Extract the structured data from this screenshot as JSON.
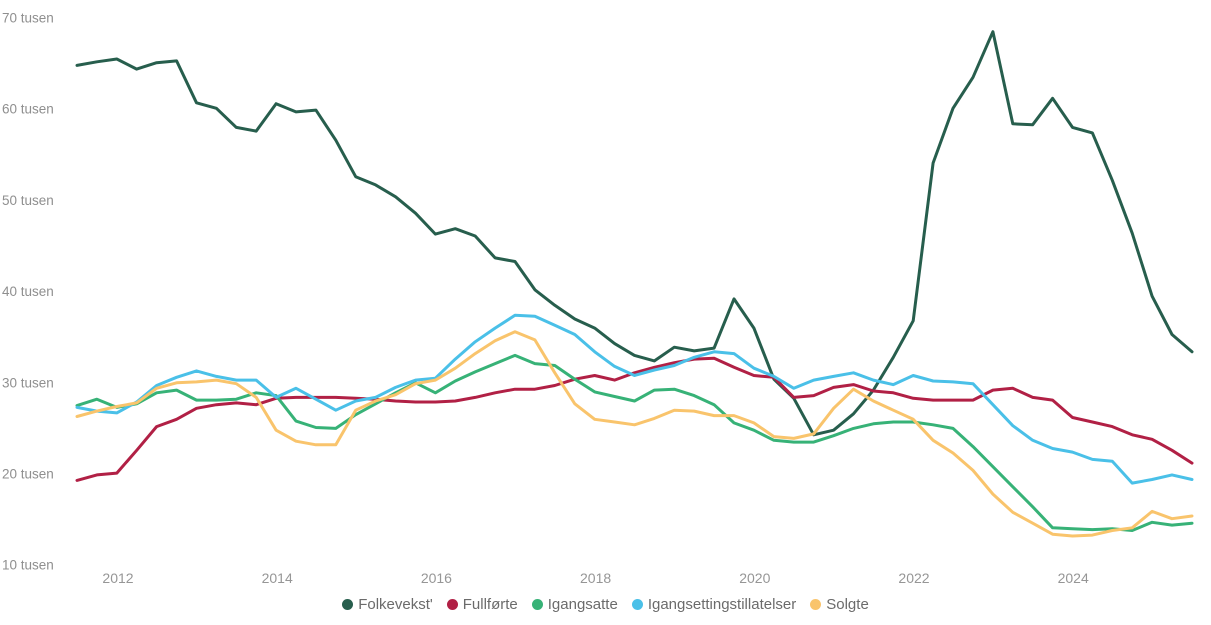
{
  "chart_data": {
    "type": "line",
    "title": "",
    "unit": "tusen",
    "grid": false,
    "background": "#ffffff",
    "axis_label_color": "#8f8f8f",
    "legend_position": "bottom",
    "legend_text_color": "#6b6b6b",
    "x_start_year": 2011.5,
    "x_step_years": 0.25,
    "x_ticks": [
      "2012",
      "2014",
      "2016",
      "2018",
      "2020",
      "2022",
      "2024"
    ],
    "x_tick_years": [
      2012,
      2014,
      2016,
      2018,
      2020,
      2022,
      2024
    ],
    "y_tick_labels": [
      "70 tusen",
      "60 tusen",
      "50 tusen",
      "40 tusen",
      "30 tusen",
      "20 tusen",
      "10 tusen"
    ],
    "y_tick_values": [
      70,
      60,
      50,
      40,
      30,
      20,
      10
    ],
    "ylim": [
      10,
      70
    ],
    "series": [
      {
        "name": "Folkevekst'",
        "color": "#275e4d",
        "values": [
          64.8,
          65.2,
          65.5,
          64.4,
          65.1,
          65.3,
          60.7,
          60.1,
          58.0,
          57.6,
          60.6,
          59.7,
          59.9,
          56.6,
          52.6,
          51.7,
          50.4,
          48.6,
          46.3,
          46.9,
          46.1,
          43.7,
          43.3,
          40.2,
          38.5,
          37.0,
          36.0,
          34.3,
          33.0,
          32.4,
          33.9,
          33.5,
          33.8,
          39.2,
          36.0,
          30.4,
          28.3,
          24.3,
          24.8,
          26.6,
          29.2,
          32.8,
          36.8,
          54.1,
          60.1,
          63.5,
          68.5,
          58.4,
          58.3,
          61.2,
          58.0,
          57.4,
          52.2,
          46.4,
          39.5,
          35.3,
          33.4
        ]
      },
      {
        "name": "Fullførte",
        "color": "#b12045",
        "values": [
          19.3,
          19.9,
          20.1,
          22.6,
          25.2,
          26.0,
          27.2,
          27.6,
          27.8,
          27.6,
          28.3,
          28.4,
          28.4,
          28.4,
          28.3,
          28.2,
          28.0,
          27.9,
          27.9,
          28.0,
          28.4,
          28.9,
          29.3,
          29.3,
          29.7,
          30.4,
          30.8,
          30.3,
          31.1,
          31.7,
          32.2,
          32.6,
          32.7,
          31.7,
          30.8,
          30.6,
          28.4,
          28.6,
          29.5,
          29.8,
          29.1,
          28.9,
          28.3,
          28.1,
          28.1,
          28.1,
          29.2,
          29.4,
          28.4,
          28.1,
          26.2,
          25.7,
          25.2,
          24.3,
          23.8,
          22.6,
          21.2
        ]
      },
      {
        "name": "Igangsatte",
        "color": "#37b277",
        "values": [
          27.5,
          28.2,
          27.3,
          27.7,
          28.9,
          29.2,
          28.1,
          28.1,
          28.2,
          28.9,
          28.6,
          25.8,
          25.1,
          25.0,
          26.5,
          27.7,
          28.9,
          30.0,
          28.9,
          30.2,
          31.2,
          32.1,
          33.0,
          32.1,
          31.9,
          30.4,
          29.0,
          28.5,
          28.0,
          29.2,
          29.3,
          28.6,
          27.6,
          25.6,
          24.8,
          23.7,
          23.5,
          23.5,
          24.2,
          25.0,
          25.5,
          25.7,
          25.7,
          25.4,
          25.0,
          23.0,
          20.8,
          18.6,
          16.4,
          14.1,
          14.0,
          13.9,
          14.0,
          13.8,
          14.7,
          14.4,
          14.6
        ]
      },
      {
        "name": "Igangsettingstillatelser",
        "color": "#4ac0e8",
        "values": [
          27.3,
          26.9,
          26.7,
          27.9,
          29.7,
          30.6,
          31.3,
          30.7,
          30.3,
          30.3,
          28.4,
          29.4,
          28.2,
          27.0,
          28.0,
          28.4,
          29.5,
          30.3,
          30.5,
          32.6,
          34.5,
          36.0,
          37.4,
          37.3,
          36.3,
          35.3,
          33.4,
          31.8,
          30.8,
          31.4,
          31.9,
          32.8,
          33.4,
          33.2,
          31.6,
          30.7,
          29.4,
          30.3,
          30.7,
          31.1,
          30.3,
          29.8,
          30.8,
          30.2,
          30.1,
          29.9,
          27.6,
          25.3,
          23.7,
          22.8,
          22.4,
          21.6,
          21.4,
          19.0,
          19.4,
          19.9,
          19.4
        ]
      },
      {
        "name": "Solgte",
        "color": "#f9c46c",
        "values": [
          26.3,
          26.9,
          27.4,
          27.8,
          29.4,
          30.0,
          30.1,
          30.3,
          29.9,
          28.4,
          24.8,
          23.6,
          23.2,
          23.2,
          27.0,
          28.0,
          28.7,
          29.9,
          30.3,
          31.6,
          33.2,
          34.6,
          35.6,
          34.7,
          31.1,
          27.7,
          26.0,
          25.7,
          25.4,
          26.1,
          27.0,
          26.9,
          26.4,
          26.4,
          25.6,
          24.1,
          23.9,
          24.4,
          27.2,
          29.3,
          28.0,
          27.0,
          26.0,
          23.7,
          22.3,
          20.4,
          17.8,
          15.8,
          14.6,
          13.4,
          13.2,
          13.3,
          13.8,
          14.1,
          15.9,
          15.1,
          15.4
        ]
      }
    ]
  }
}
